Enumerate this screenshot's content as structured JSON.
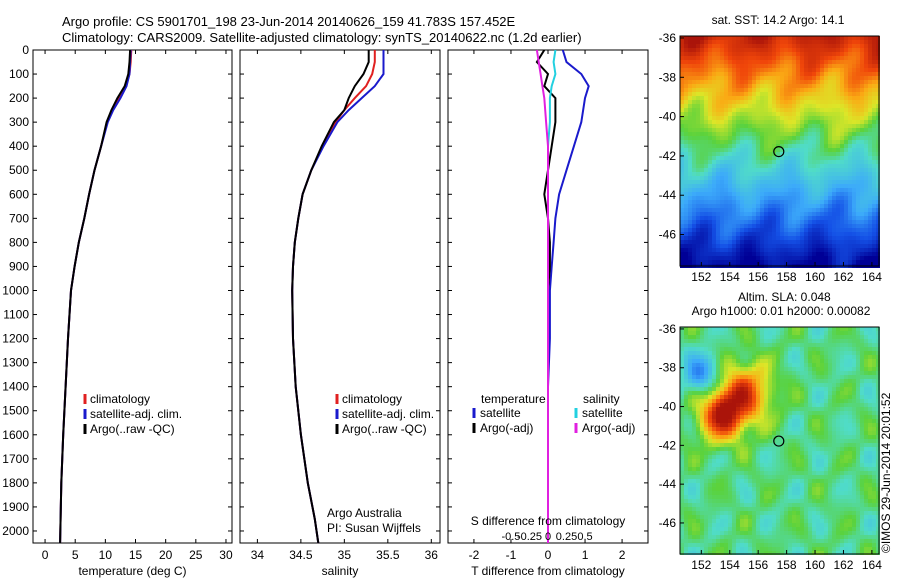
{
  "title": {
    "line1": "Argo profile: CS 5901701_198 23-Jun-2014 20140626_159 41.783S 157.452E",
    "line2": "Climatology: CARS2009. Satellite-adjusted climatology: synTS_20140622.nc (1.2d earlier)"
  },
  "colors": {
    "climatology": "#e02020",
    "satellite": "#1a1acc",
    "argo": "#000000",
    "sal_satellite": "#22d0e0",
    "sal_argo": "#e020e0"
  },
  "legend_profile": {
    "items": [
      "climatology",
      "satellite-adj. clim.",
      "Argo(..raw -QC)"
    ]
  },
  "legend_diff": {
    "temperature_header": "temperature",
    "salinity_header": "salinity",
    "temp_items": [
      "satellite",
      "Argo(-adj)"
    ],
    "sal_items": [
      "satellite",
      "Argo(-adj)"
    ]
  },
  "credits": {
    "line1": "Argo Australia",
    "line2": "PI: Susan Wijffels"
  },
  "diff_top_label": "S difference from climatology",
  "sst_title": "sat. SST: 14.2  Argo: 14.1",
  "sla_title1": "Altim. SLA: 0.048",
  "sla_title2": "Argo h1000: 0.01 h2000: 0.00082",
  "imos_stamp": "©IMOS 29-Jun-2014 20:01:52",
  "chart_data": [
    {
      "type": "line",
      "name": "temperature",
      "xlabel": "temperature (deg C)",
      "ylabel": "",
      "xlim": [
        -2,
        31
      ],
      "ylim": [
        2050,
        0
      ],
      "xticks": [
        0,
        5,
        10,
        15,
        20,
        25,
        30
      ],
      "yticks": [
        0,
        100,
        200,
        300,
        400,
        500,
        600,
        700,
        800,
        900,
        1000,
        1100,
        1200,
        1300,
        1400,
        1500,
        1600,
        1700,
        1800,
        1900,
        2000
      ],
      "series": [
        {
          "name": "climatology",
          "x": [
            14.3,
            14.2,
            14.0,
            13.4,
            12.3,
            11.2,
            10.3,
            9.3,
            8.2,
            7.3,
            6.5,
            5.6,
            4.9,
            4.3,
            3.8,
            3.4,
            3.0,
            2.7,
            2.5
          ],
          "y": [
            0,
            50,
            100,
            150,
            200,
            250,
            300,
            400,
            500,
            600,
            700,
            800,
            900,
            1000,
            1200,
            1400,
            1600,
            1800,
            2050
          ]
        },
        {
          "name": "satellite-adj. clim.",
          "x": [
            14.2,
            14.1,
            14.0,
            13.5,
            12.5,
            11.3,
            10.4,
            9.3,
            8.2,
            7.3,
            6.5,
            5.6,
            4.9,
            4.3,
            3.8,
            3.4,
            3.0,
            2.7,
            2.5
          ],
          "y": [
            0,
            50,
            100,
            150,
            200,
            250,
            300,
            400,
            500,
            600,
            700,
            800,
            900,
            1000,
            1200,
            1400,
            1600,
            1800,
            2050
          ]
        },
        {
          "name": "Argo(..raw -QC)",
          "x": [
            14.1,
            14.0,
            13.8,
            13.2,
            12.0,
            11.0,
            10.2,
            9.3,
            8.2,
            7.3,
            6.5,
            5.6,
            4.9,
            4.3,
            3.8,
            3.4,
            3.0,
            2.7,
            2.5
          ],
          "y": [
            0,
            50,
            100,
            150,
            200,
            250,
            300,
            400,
            500,
            600,
            700,
            800,
            900,
            1000,
            1200,
            1400,
            1600,
            1800,
            2050
          ]
        }
      ]
    },
    {
      "type": "line",
      "name": "salinity",
      "xlabel": "salinity",
      "ylabel": "",
      "xlim": [
        33.8,
        36.1
      ],
      "ylim": [
        2050,
        0
      ],
      "xticks": [
        34,
        34.5,
        35,
        35.5,
        36
      ],
      "xtick_labels": [
        "34",
        "34.5",
        "35",
        "35.5",
        "36"
      ],
      "series": [
        {
          "name": "climatology",
          "x": [
            35.35,
            35.35,
            35.32,
            35.25,
            35.12,
            35.0,
            34.9,
            34.75,
            34.62,
            34.52,
            34.47,
            34.43,
            34.41,
            34.4,
            34.41,
            34.44,
            34.5,
            34.58,
            34.66,
            34.7
          ],
          "y": [
            0,
            50,
            100,
            150,
            200,
            250,
            300,
            400,
            500,
            600,
            700,
            800,
            900,
            1000,
            1200,
            1400,
            1600,
            1800,
            1950,
            2050
          ]
        },
        {
          "name": "satellite-adj. clim.",
          "x": [
            35.45,
            35.45,
            35.45,
            35.35,
            35.2,
            35.05,
            34.92,
            34.76,
            34.62,
            34.52,
            34.47,
            34.43,
            34.41,
            34.4,
            34.41,
            34.44,
            34.5,
            34.58,
            34.66,
            34.7
          ],
          "y": [
            0,
            50,
            100,
            150,
            200,
            250,
            300,
            400,
            500,
            600,
            700,
            800,
            900,
            1000,
            1200,
            1400,
            1600,
            1800,
            1950,
            2050
          ]
        },
        {
          "name": "Argo(..raw -QC)",
          "x": [
            35.28,
            35.28,
            35.22,
            35.12,
            35.05,
            35.0,
            34.88,
            34.74,
            34.62,
            34.52,
            34.47,
            34.43,
            34.41,
            34.4,
            34.41,
            34.44,
            34.5,
            34.58,
            34.66,
            34.7
          ],
          "y": [
            0,
            50,
            100,
            150,
            200,
            250,
            300,
            400,
            500,
            600,
            700,
            800,
            900,
            1000,
            1200,
            1400,
            1600,
            1800,
            1950,
            2050
          ]
        }
      ]
    },
    {
      "type": "line",
      "name": "difference",
      "xlabel": "T difference from climatology",
      "xlim": [
        -2.7,
        2.7
      ],
      "ylim": [
        2050,
        0
      ],
      "xticks": [
        -2,
        -1,
        0,
        1,
        2
      ],
      "sticks": [
        -0.5,
        -0.25,
        0,
        0.25,
        0.5
      ],
      "stick_labels": [
        "-0.5",
        "-0.25",
        "0",
        "0.25",
        "0.5"
      ],
      "series": [
        {
          "name": "temperature satellite",
          "x": [
            0.4,
            0.5,
            0.9,
            1.1,
            1.0,
            0.9,
            0.7,
            0.5,
            0.3,
            0.2,
            0.15,
            0.1,
            0.05,
            0.05,
            0.0,
            0.0,
            0.0,
            0.0
          ],
          "y": [
            0,
            50,
            100,
            150,
            200,
            300,
            400,
            500,
            600,
            700,
            800,
            900,
            1000,
            1200,
            1400,
            1600,
            1800,
            2050
          ]
        },
        {
          "name": "temperature Argo(-adj)",
          "x": [
            -0.1,
            -0.3,
            0.0,
            -0.1,
            0.2,
            0.2,
            0.1,
            0.0,
            -0.1,
            0.0,
            0.05,
            0.05,
            0.0,
            0.0,
            0.0,
            0.0,
            0.0,
            0.0
          ],
          "y": [
            0,
            50,
            100,
            150,
            200,
            300,
            400,
            500,
            600,
            700,
            800,
            900,
            1000,
            1200,
            1400,
            1600,
            1800,
            2050
          ]
        },
        {
          "name": "salinity satellite",
          "x": [
            0.2,
            0.15,
            0.2,
            0.1,
            0.05,
            0.05,
            0.0,
            0.0,
            0.0,
            0.0,
            0.0,
            0.0
          ],
          "y": [
            0,
            50,
            100,
            150,
            200,
            300,
            400,
            600,
            800,
            1000,
            1500,
            2050
          ]
        },
        {
          "name": "salinity Argo(-adj)",
          "x": [
            -0.3,
            -0.25,
            -0.2,
            -0.15,
            -0.1,
            -0.05,
            0.0,
            0.0,
            0.0,
            0.0,
            0.0
          ],
          "y": [
            0,
            50,
            100,
            150,
            200,
            300,
            400,
            600,
            1000,
            1500,
            2050
          ]
        }
      ]
    },
    {
      "type": "heatmap",
      "name": "sst map",
      "xlim": [
        150.5,
        164.5
      ],
      "ylim": [
        -47.6,
        -35.9
      ],
      "xticks": [
        152,
        154,
        156,
        158,
        160,
        162,
        164
      ],
      "yticks": [
        -36,
        -38,
        -40,
        -42,
        -44,
        -46
      ],
      "argo_position": [
        157.45,
        -41.78
      ]
    },
    {
      "type": "heatmap",
      "name": "sla map",
      "xlim": [
        150.5,
        164.5
      ],
      "ylim": [
        -47.6,
        -35.9
      ],
      "xticks": [
        152,
        154,
        156,
        158,
        160,
        162,
        164
      ],
      "yticks": [
        -36,
        -38,
        -40,
        -42,
        -44,
        -46
      ],
      "argo_position": [
        157.45,
        -41.78
      ]
    }
  ]
}
